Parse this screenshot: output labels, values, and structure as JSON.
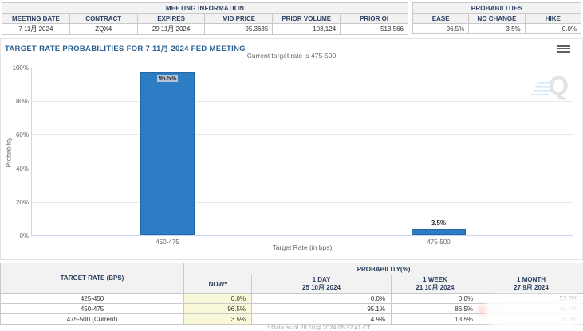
{
  "meeting_info": {
    "title": "MEETING INFORMATION",
    "columns": [
      "MEETING DATE",
      "CONTRACT",
      "EXPIRES",
      "MID PRICE",
      "PRIOR VOLUME",
      "PRIOR OI"
    ],
    "values": [
      "7 11月 2024",
      "ZQX4",
      "29 11月 2024",
      "95.3635",
      "103,124",
      "513,566"
    ]
  },
  "probabilities": {
    "title": "PROBABILITIES",
    "columns": [
      "EASE",
      "NO CHANGE",
      "HIKE"
    ],
    "values": [
      "96.5%",
      "3.5%",
      "0.0%"
    ]
  },
  "chart_data": {
    "type": "bar",
    "title": "TARGET RATE PROBABILITIES FOR 7 11月 2024 FED MEETING",
    "subtitle": "Current target rate is 475-500",
    "categories": [
      "450-475",
      "475-500"
    ],
    "values": [
      96.5,
      3.5
    ],
    "data_labels": [
      "96.5%",
      "3.5%"
    ],
    "xlabel": "Target Rate (in bps)",
    "ylabel": "Probability",
    "ylim": [
      0,
      100
    ],
    "yticks": [
      "0%",
      "20%",
      "40%",
      "60%",
      "80%",
      "100%"
    ],
    "bar_color": "#2e7cc3",
    "grid": true,
    "legend": false
  },
  "history_table": {
    "rate_header": "TARGET RATE (BPS)",
    "group_header": "PROBABILITY(%)",
    "columns": [
      {
        "label": "NOW*",
        "date": ""
      },
      {
        "label": "1 DAY",
        "date": "25 10月 2024"
      },
      {
        "label": "1 WEEK",
        "date": "21 10月 2024"
      },
      {
        "label": "1 MONTH",
        "date": "27 9月 2024"
      }
    ],
    "rows": [
      {
        "rate": "425-450",
        "values": [
          "0.0%",
          "0.0%",
          "0.0%",
          "53.3%"
        ]
      },
      {
        "rate": "450-475",
        "values": [
          "96.5%",
          "95.1%",
          "86.5%",
          "46.7%"
        ]
      },
      {
        "rate": "475-500 (Current)",
        "values": [
          "3.5%",
          "4.9%",
          "13.5%",
          "0.0%"
        ]
      }
    ],
    "footnote": "* Data as of 28 10月 2024 05:32:41 CT"
  },
  "icons": {
    "menu": "chart-context-menu",
    "watermark_letter": "Q"
  },
  "colors": {
    "accent_blue": "#2e7cc3",
    "header_text": "#2a3f5f",
    "title_blue": "#276092",
    "now_highlight": "#f9f9da"
  }
}
